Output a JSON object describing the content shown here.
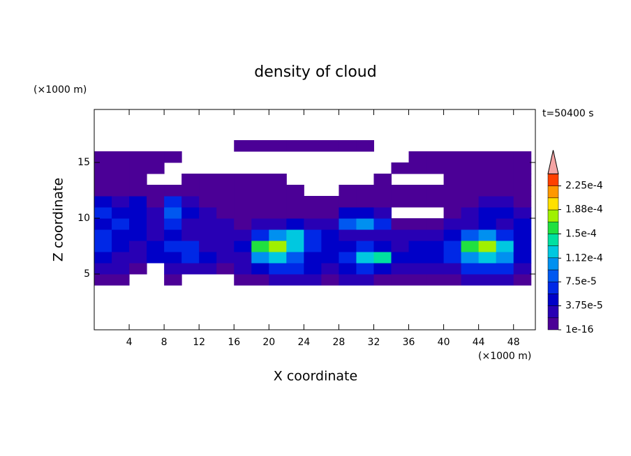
{
  "chart_data": {
    "type": "contour",
    "title": "density of cloud",
    "xlabel": "X coordinate",
    "ylabel": "Z coordinate",
    "x_unit": "(×1000 m)",
    "y_unit": "(×1000 m)",
    "time_label": "t=50400 s",
    "xlim": [
      0,
      50.5
    ],
    "ylim": [
      0,
      19.75
    ],
    "xticks": [
      4,
      8,
      12,
      16,
      20,
      24,
      28,
      32,
      36,
      40,
      44,
      48
    ],
    "yticks": [
      5,
      10,
      15
    ],
    "xbins": [
      0,
      2,
      4,
      6,
      8,
      10,
      12,
      14,
      16,
      18,
      20,
      22,
      24,
      26,
      28,
      30,
      32,
      34,
      36,
      38,
      40,
      42,
      44,
      46,
      48,
      50
    ],
    "ybins": [
      0,
      1,
      2,
      3,
      4,
      5,
      6,
      7,
      8,
      9,
      10,
      11,
      12,
      13,
      14,
      15,
      16,
      17,
      18,
      19,
      20
    ],
    "values": [
      [
        null,
        null,
        null,
        null,
        null,
        null,
        null,
        null,
        null,
        null,
        null,
        null,
        null,
        null,
        null,
        null,
        null,
        null,
        null,
        null,
        null,
        null,
        null,
        null,
        null
      ],
      [
        null,
        null,
        null,
        null,
        null,
        null,
        null,
        null,
        null,
        null,
        null,
        null,
        null,
        null,
        null,
        null,
        null,
        null,
        null,
        null,
        null,
        null,
        null,
        null,
        null
      ],
      [
        null,
        null,
        null,
        null,
        null,
        null,
        null,
        null,
        null,
        null,
        null,
        null,
        null,
        null,
        null,
        null,
        null,
        null,
        null,
        null,
        null,
        null,
        null,
        null,
        null
      ],
      [
        null,
        null,
        null,
        null,
        null,
        null,
        null,
        null,
        null,
        null,
        null,
        null,
        null,
        null,
        null,
        null,
        null,
        null,
        null,
        null,
        null,
        null,
        null,
        null,
        null
      ],
      [
        1e-06,
        1e-06,
        null,
        null,
        2e-06,
        null,
        null,
        null,
        1e-06,
        1e-06,
        2e-05,
        3e-05,
        2e-05,
        1e-05,
        2e-05,
        3e-05,
        1e-05,
        1e-06,
        1e-06,
        1e-06,
        1e-06,
        2e-05,
        3e-05,
        2e-05,
        1e-06
      ],
      [
        3e-05,
        2e-05,
        1e-06,
        null,
        2e-05,
        2e-05,
        3e-05,
        1e-05,
        2e-05,
        4e-05,
        6e-05,
        7e-05,
        5e-05,
        3e-05,
        4e-05,
        6e-05,
        5e-05,
        2e-05,
        3e-05,
        2e-05,
        3e-05,
        6e-05,
        7e-05,
        6e-05,
        2e-05
      ],
      [
        5e-05,
        3e-05,
        2e-05,
        4e-05,
        5e-05,
        6e-05,
        4e-05,
        3e-05,
        3e-05,
        0.00011,
        0.00012,
        9e-05,
        5e-05,
        4e-05,
        6e-05,
        0.00013,
        0.00014,
        4e-05,
        5e-05,
        4e-05,
        6e-05,
        0.00011,
        0.00012,
        0.0001,
        4e-05
      ],
      [
        6e-05,
        4e-05,
        3e-05,
        5e-05,
        7e-05,
        6e-05,
        3e-05,
        2e-05,
        4e-05,
        0.00016,
        0.00017,
        0.00012,
        7e-05,
        5e-05,
        4e-05,
        6e-05,
        5e-05,
        3e-05,
        4e-05,
        4e-05,
        6e-05,
        0.00016,
        0.00017,
        0.00013,
        5e-05
      ],
      [
        7e-05,
        5e-05,
        4e-05,
        3e-05,
        4e-05,
        3e-05,
        2e-05,
        3e-05,
        2e-05,
        6e-05,
        0.00011,
        0.00013,
        6e-05,
        4e-05,
        3e-05,
        3e-05,
        2e-05,
        2e-05,
        3e-05,
        3e-05,
        4e-05,
        9e-05,
        0.0001,
        6e-05,
        5e-05
      ],
      [
        5e-05,
        6e-05,
        4e-05,
        2e-05,
        7e-05,
        3e-05,
        2e-05,
        2e-05,
        1e-05,
        2e-05,
        3e-05,
        4e-05,
        3e-05,
        2e-05,
        8e-05,
        0.0001,
        7e-05,
        1e-06,
        1e-06,
        1e-06,
        2e-05,
        3e-05,
        4e-05,
        3e-05,
        4e-05
      ],
      [
        6e-05,
        5e-05,
        5e-05,
        2e-05,
        9e-05,
        5e-05,
        3e-05,
        1e-05,
        1e-06,
        1e-06,
        1e-06,
        1e-05,
        1e-05,
        1e-05,
        4e-05,
        5e-05,
        3e-05,
        null,
        null,
        null,
        1e-05,
        2e-05,
        4e-05,
        5e-05,
        3e-05
      ],
      [
        4e-05,
        3e-05,
        4e-05,
        1e-06,
        6e-05,
        2e-05,
        1e-06,
        1e-06,
        1e-06,
        1e-06,
        1e-06,
        1e-06,
        1e-06,
        1e-06,
        1e-06,
        1e-06,
        1e-06,
        1e-06,
        1e-06,
        1e-06,
        1e-06,
        1e-06,
        2e-05,
        3e-05,
        1e-05
      ],
      [
        1e-06,
        1e-06,
        1e-06,
        1e-06,
        1e-06,
        1e-06,
        1e-06,
        1e-06,
        1e-06,
        1e-06,
        1e-06,
        1e-06,
        null,
        null,
        1e-06,
        1e-06,
        1e-06,
        1e-06,
        1e-06,
        1e-06,
        1e-06,
        1e-06,
        1e-06,
        1e-06,
        1e-06
      ],
      [
        1e-06,
        1e-06,
        1e-06,
        null,
        null,
        1e-06,
        1e-06,
        1e-06,
        1e-06,
        1e-06,
        1e-06,
        null,
        null,
        null,
        null,
        null,
        1e-06,
        null,
        null,
        null,
        1e-06,
        1e-06,
        1e-06,
        1e-06,
        1e-06
      ],
      [
        1e-06,
        1e-06,
        1e-06,
        1e-06,
        null,
        null,
        null,
        null,
        null,
        null,
        null,
        null,
        null,
        null,
        null,
        null,
        null,
        1e-06,
        1e-06,
        1e-06,
        1e-06,
        1e-06,
        1e-06,
        1e-06,
        1e-06
      ],
      [
        1e-06,
        1e-06,
        1e-06,
        1e-06,
        1e-06,
        null,
        null,
        null,
        null,
        null,
        null,
        null,
        null,
        null,
        null,
        null,
        null,
        null,
        1e-06,
        1e-06,
        1e-06,
        1e-06,
        1e-06,
        1e-06,
        1e-06
      ],
      [
        null,
        null,
        null,
        null,
        null,
        null,
        null,
        null,
        1e-06,
        1e-06,
        1e-06,
        1e-06,
        1e-06,
        1e-06,
        1e-06,
        1e-06,
        null,
        null,
        null,
        null,
        null,
        null,
        null,
        null,
        null
      ],
      [
        null,
        null,
        null,
        null,
        null,
        null,
        null,
        null,
        null,
        null,
        null,
        null,
        null,
        null,
        null,
        null,
        null,
        null,
        null,
        null,
        null,
        null,
        null,
        null,
        null
      ],
      [
        null,
        null,
        null,
        null,
        null,
        null,
        null,
        null,
        null,
        null,
        null,
        null,
        null,
        null,
        null,
        null,
        null,
        null,
        null,
        null,
        null,
        null,
        null,
        null,
        null
      ],
      [
        null,
        null,
        null,
        null,
        null,
        null,
        null,
        null,
        null,
        null,
        null,
        null,
        null,
        null,
        null,
        null,
        null,
        null,
        null,
        null,
        null,
        null,
        null,
        null,
        null
      ]
    ],
    "levels": [
      1e-16,
      1.875e-05,
      3.75e-05,
      5.625e-05,
      7.5e-05,
      9.375e-05,
      0.0001125,
      0.00013125,
      0.00015,
      0.00016875,
      0.0001875,
      0.00020625,
      0.000225,
      0.00024375
    ],
    "colors": [
      "#4b0096",
      "#2800b4",
      "#0000c8",
      "#0028e6",
      "#0058f0",
      "#0090f0",
      "#00c8e0",
      "#00e0a0",
      "#20e040",
      "#a0f000",
      "#ffe000",
      "#ff9800",
      "#ff4000"
    ],
    "overflow_color": "#f4a4a4",
    "cticks": [
      {
        "value": 1e-16,
        "label": "1e-16"
      },
      {
        "value": 3.75e-05,
        "label": "3.75e-5"
      },
      {
        "value": 7.5e-05,
        "label": "7.5e-5"
      },
      {
        "value": 0.000112,
        "label": "1.12e-4"
      },
      {
        "value": 0.00015,
        "label": "1.5e-4"
      },
      {
        "value": 0.000188,
        "label": "1.88e-4"
      },
      {
        "value": 0.000225,
        "label": "2.25e-4"
      }
    ]
  }
}
